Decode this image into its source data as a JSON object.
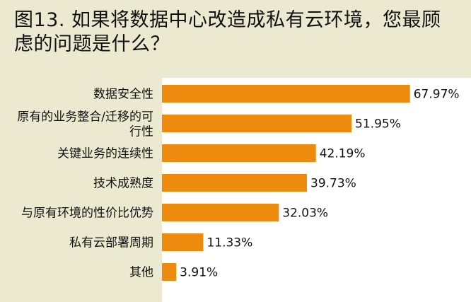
{
  "title": "图13. 如果将数据中心改造成私有云环境，您最顾虑的问题是什么？",
  "colors": {
    "bar": "#ed8b0e",
    "background": "#ebe9cf",
    "plot": "#ffffff"
  },
  "chart_data": {
    "type": "bar",
    "orientation": "horizontal",
    "title": "图13. 如果将数据中心改造成私有云环境，您最顾虑的问题是什么？",
    "categories": [
      "数据安全性",
      "原有的业务整合/迁移的可行性",
      "关键业务的连续性",
      "技术成熟度",
      "与原有环境的性价比优势",
      "私有云部署周期",
      "其他"
    ],
    "values": [
      67.97,
      51.95,
      42.19,
      39.73,
      32.03,
      11.33,
      3.91
    ],
    "data_labels": [
      "67.97%",
      "51.95%",
      "42.19%",
      "39.73%",
      "32.03%",
      "11.33%",
      "3.91%"
    ],
    "xlim": [
      0,
      100
    ],
    "grid": false,
    "legend": "none"
  }
}
